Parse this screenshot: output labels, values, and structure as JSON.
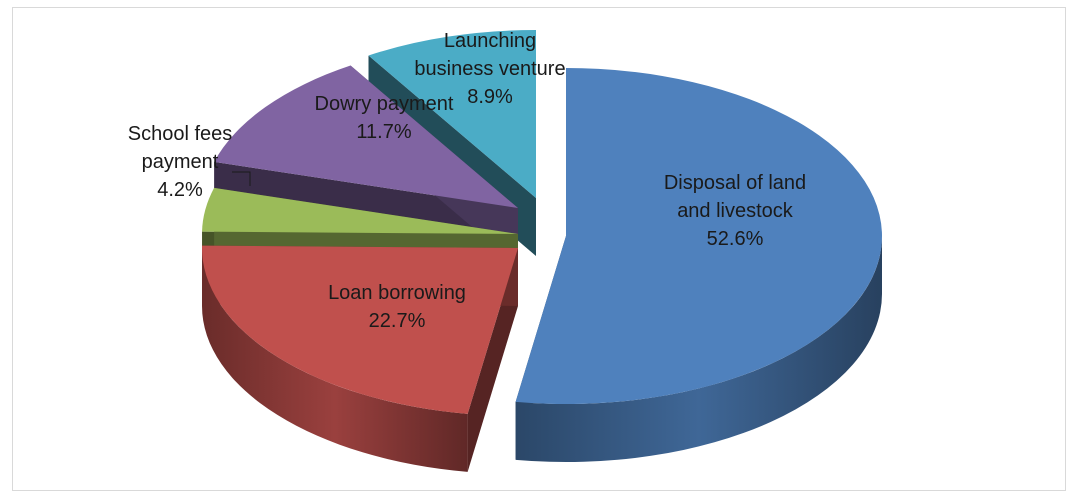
{
  "chart_data": {
    "type": "pie",
    "title": "",
    "legend": "none",
    "slices": [
      {
        "label": "Disposal of land and livestock",
        "label_lines": [
          "Disposal of land",
          "and livestock"
        ],
        "value": 52.6,
        "value_text": "52.6%",
        "color": "#4F81BD"
      },
      {
        "label": "Loan borrowing",
        "label_lines": [
          "Loan borrowing"
        ],
        "value": 22.7,
        "value_text": "22.7%",
        "color": "#C0504D"
      },
      {
        "label": "School fees payment",
        "label_lines": [
          "School fees",
          "payment"
        ],
        "value": 4.2,
        "value_text": "4.2%",
        "color": "#9BBB59"
      },
      {
        "label": "Dowry payment",
        "label_lines": [
          "Dowry payment"
        ],
        "value": 11.7,
        "value_text": "11.7%",
        "color": "#8064A2"
      },
      {
        "label": "Launching business venture",
        "label_lines": [
          "Launching",
          "business venture"
        ],
        "value": 8.9,
        "value_text": "8.9%",
        "color": "#4BACC6"
      }
    ]
  }
}
